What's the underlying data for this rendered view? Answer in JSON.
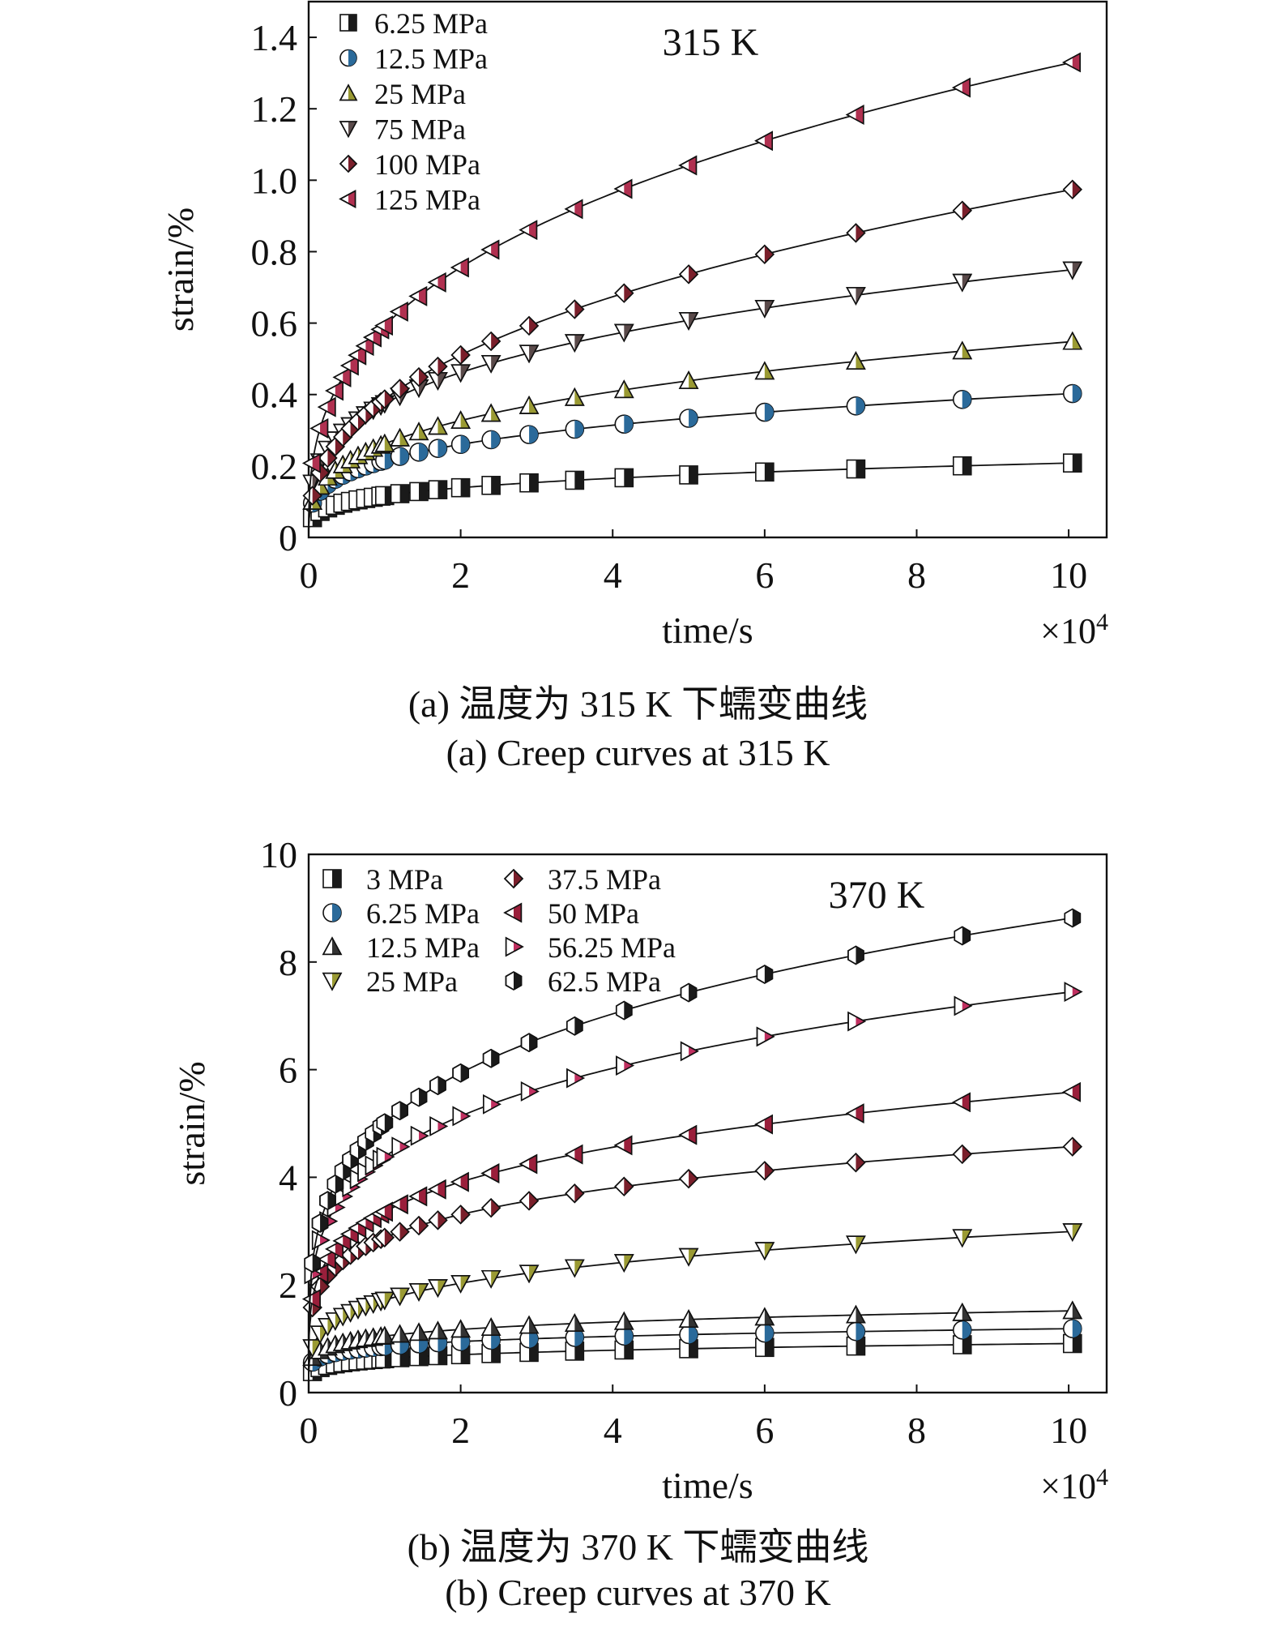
{
  "charts": [
    {
      "id": "a",
      "caption_cn": "(a) 温度为 315 K 下蠕变曲线",
      "caption_en": "(a) Creep curves at 315 K",
      "chart_data": {
        "type": "line",
        "annotation": "315 K",
        "xlabel": "time/s",
        "ylabel": "strain/%",
        "x_multiplier": "×10",
        "x_multiplier_exp": "4",
        "xlim": [
          0,
          10.5
        ],
        "ylim": [
          0,
          1.5
        ],
        "xticks": [
          0,
          2,
          4,
          6,
          8,
          10
        ],
        "xtick_labels": [
          "0",
          "2",
          "4",
          "6",
          "8",
          "10"
        ],
        "yticks": [
          0,
          0.2,
          0.4,
          0.6,
          0.8,
          1.0,
          1.2,
          1.4
        ],
        "ytick_labels": [
          "0",
          "0.2",
          "0.4",
          "0.6",
          "0.8",
          "1.0",
          "1.2",
          "1.4"
        ],
        "legend_position": "top-left",
        "legend_columns": 1,
        "curve_form": "y = a * x^b",
        "series": [
          {
            "name": "6.25 MPa",
            "marker": "square",
            "fill": "#1a1a1a",
            "a": 0.117,
            "b": 0.25
          },
          {
            "name": "12.5 MPa",
            "marker": "circle",
            "fill": "#2b6a9a",
            "a": 0.216,
            "b": 0.27
          },
          {
            "name": "25 MPa",
            "marker": "triangle-up",
            "fill": "#9a9a33",
            "a": 0.262,
            "b": 0.32
          },
          {
            "name": "75 MPa",
            "marker": "triangle-down",
            "fill": "#5a4a4a",
            "a": 0.375,
            "b": 0.3
          },
          {
            "name": "100 MPa",
            "marker": "diamond",
            "fill": "#7a1f2b",
            "a": 0.387,
            "b": 0.4
          },
          {
            "name": "125 MPa",
            "marker": "triangle-left",
            "fill": "#b03050",
            "a": 0.593,
            "b": 0.35
          }
        ]
      }
    },
    {
      "id": "b",
      "caption_cn": "(b) 温度为 370 K 下蠕变曲线",
      "caption_en": "(b) Creep curves at 370 K",
      "chart_data": {
        "type": "line",
        "annotation": "370 K",
        "xlabel": "time/s",
        "ylabel": "strain/%",
        "x_multiplier": "×10",
        "x_multiplier_exp": "4",
        "xlim": [
          0,
          10.5
        ],
        "ylim": [
          0,
          10
        ],
        "xticks": [
          0,
          2,
          4,
          6,
          8,
          10
        ],
        "xtick_labels": [
          "0",
          "2",
          "4",
          "6",
          "8",
          "10"
        ],
        "yticks": [
          0,
          2,
          4,
          6,
          8,
          10
        ],
        "ytick_labels": [
          "0",
          "2",
          "4",
          "6",
          "8",
          "10"
        ],
        "legend_position": "top-left",
        "legend_columns": 2,
        "curve_form": "y = a * x^b",
        "series": [
          {
            "name": "3 MPa",
            "marker": "square",
            "fill": "#1a1a1a",
            "a": 0.63,
            "b": 0.16
          },
          {
            "name": "6.25 MPa",
            "marker": "circle",
            "fill": "#2b6a9a",
            "a": 0.86,
            "b": 0.14
          },
          {
            "name": "12.5 MPa",
            "marker": "triangle-up",
            "fill": "#333333",
            "a": 1.05,
            "b": 0.16
          },
          {
            "name": "25 MPa",
            "marker": "triangle-down",
            "fill": "#9a9a33",
            "a": 1.72,
            "b": 0.24
          },
          {
            "name": "37.5 MPa",
            "marker": "diamond",
            "fill": "#7a1f2b",
            "a": 2.88,
            "b": 0.2
          },
          {
            "name": "50 MPa",
            "marker": "triangle-left",
            "fill": "#9a1f3b",
            "a": 3.36,
            "b": 0.22
          },
          {
            "name": "56.25 MPa",
            "marker": "triangle-right",
            "fill": "#c03060",
            "a": 4.38,
            "b": 0.23
          },
          {
            "name": "62.5 MPa",
            "marker": "hexagon",
            "fill": "#1a1a1a",
            "a": 5.01,
            "b": 0.245
          }
        ]
      }
    }
  ]
}
